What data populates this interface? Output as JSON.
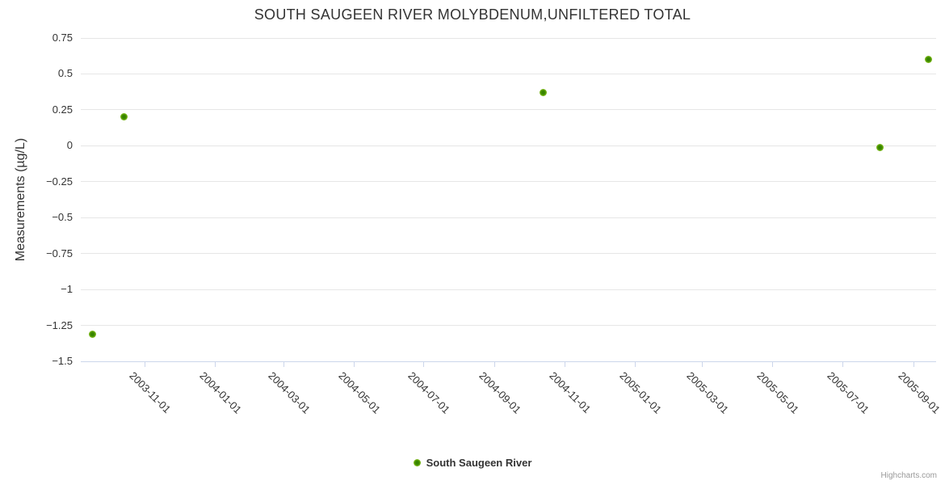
{
  "title": "SOUTH SAUGEEN RIVER MOLYBDENUM,UNFILTERED TOTAL",
  "credits": "Highcharts.com",
  "colors": {
    "text": "#333333",
    "gridline": "#e6e6e6",
    "axis_line": "#ccd6eb",
    "marker_outer": "#8cc63f",
    "marker_inner": "#3c8a00",
    "credits_text": "#999999",
    "background": "#ffffff"
  },
  "chart_data": {
    "type": "scatter",
    "title": "SOUTH SAUGEEN RIVER MOLYBDENUM,UNFILTERED TOTAL",
    "xlabel": "",
    "ylabel": "Measurements (µg/L)",
    "ylim": [
      -1.5,
      0.75
    ],
    "xlim": [
      "2003-09-06",
      "2005-09-21"
    ],
    "grid": "horizontal-only",
    "legend_position": "bottom-center",
    "yticks": [
      {
        "value": 0.75,
        "label": "0.75"
      },
      {
        "value": 0.5,
        "label": "0.5"
      },
      {
        "value": 0.25,
        "label": "0.25"
      },
      {
        "value": 0,
        "label": "0"
      },
      {
        "value": -0.25,
        "label": "−0.25"
      },
      {
        "value": -0.5,
        "label": "−0.5"
      },
      {
        "value": -0.75,
        "label": "−0.75"
      },
      {
        "value": -1,
        "label": "−1"
      },
      {
        "value": -1.25,
        "label": "−1.25"
      },
      {
        "value": -1.5,
        "label": "−1.5"
      }
    ],
    "xticks": [
      "2003-11-01",
      "2004-01-01",
      "2004-03-01",
      "2004-05-01",
      "2004-07-01",
      "2004-09-01",
      "2004-11-01",
      "2005-01-01",
      "2005-03-01",
      "2005-05-01",
      "2005-07-01",
      "2005-09-01"
    ],
    "series": [
      {
        "name": "South Saugeen River",
        "color": "#8cc63f",
        "points": [
          {
            "x": "2003-09-16",
            "y": -1.31
          },
          {
            "x": "2003-10-14",
            "y": 0.2
          },
          {
            "x": "2004-10-13",
            "y": 0.37
          },
          {
            "x": "2005-08-03",
            "y": -0.01
          },
          {
            "x": "2005-09-14",
            "y": 0.6
          }
        ]
      }
    ]
  }
}
